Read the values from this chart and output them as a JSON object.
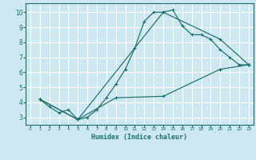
{
  "xlabel": "Humidex (Indice chaleur)",
  "bg_color": "#cde8f0",
  "line_color": "#1a6e6a",
  "grid_color": "#ffffff",
  "xlim": [
    -0.5,
    23.5
  ],
  "ylim": [
    2.5,
    10.6
  ],
  "xticks": [
    0,
    1,
    2,
    3,
    4,
    5,
    6,
    7,
    8,
    9,
    10,
    11,
    12,
    13,
    14,
    15,
    16,
    17,
    18,
    19,
    20,
    21,
    22,
    23
  ],
  "yticks": [
    3,
    4,
    5,
    6,
    7,
    8,
    9,
    10
  ],
  "line1_x": [
    1,
    2,
    3,
    4,
    5,
    6,
    7,
    8,
    9,
    10,
    11,
    12,
    13,
    14,
    15,
    16,
    17,
    18,
    19,
    20,
    21,
    22,
    23
  ],
  "line1_y": [
    4.2,
    3.7,
    3.3,
    3.5,
    2.85,
    3.0,
    3.5,
    4.3,
    5.2,
    6.2,
    7.6,
    9.4,
    10.0,
    10.0,
    10.15,
    9.1,
    8.5,
    8.5,
    8.2,
    7.5,
    7.0,
    6.5,
    6.5
  ],
  "line2_x": [
    1,
    5,
    14,
    20,
    23
  ],
  "line2_y": [
    4.2,
    2.85,
    10.0,
    8.2,
    6.5
  ],
  "line3_x": [
    1,
    5,
    9,
    14,
    20,
    23
  ],
  "line3_y": [
    4.2,
    2.85,
    4.3,
    4.4,
    6.2,
    6.5
  ]
}
